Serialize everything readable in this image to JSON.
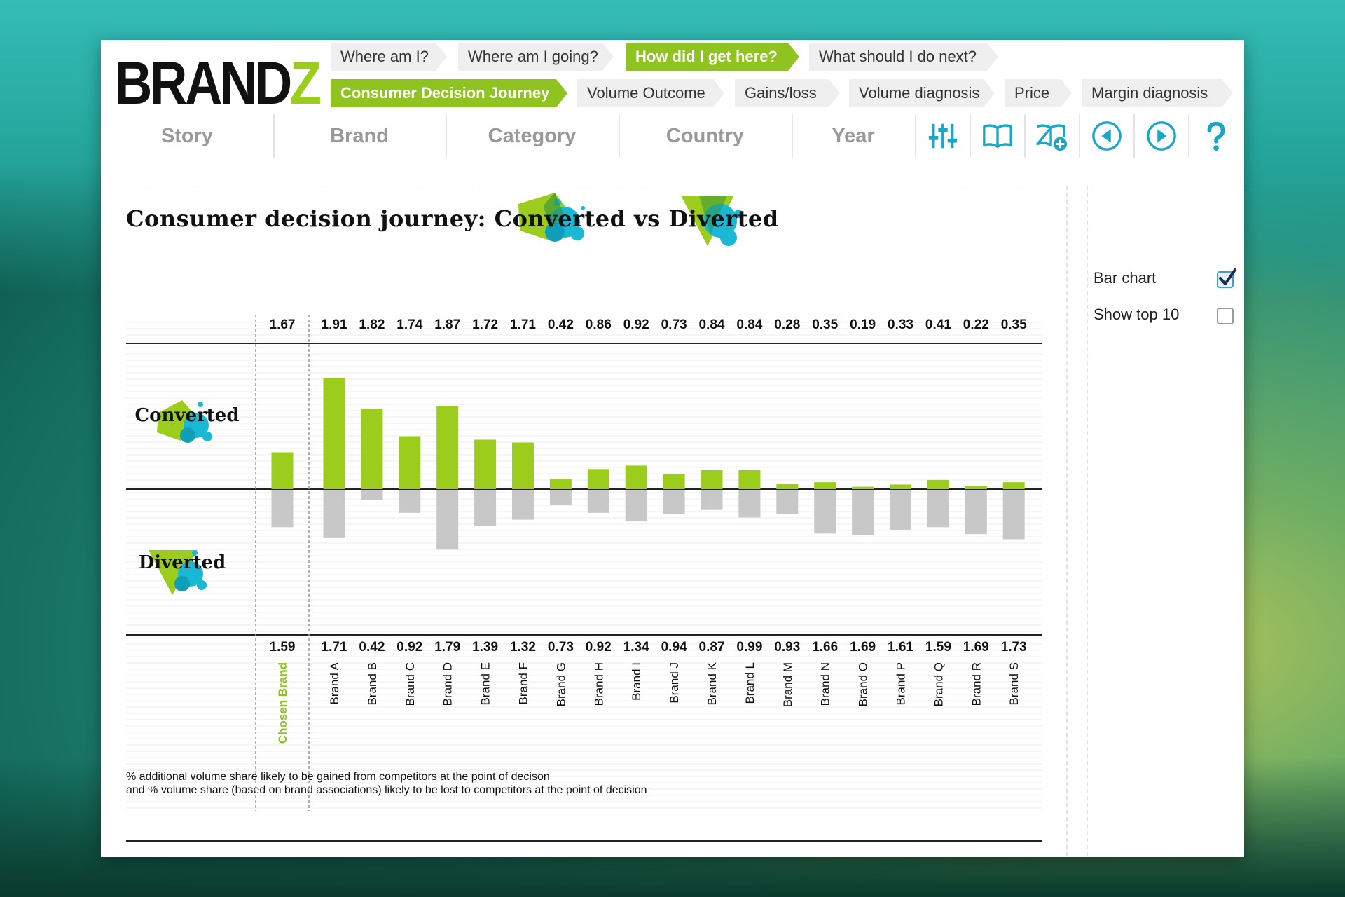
{
  "app": {
    "logo_main": "BRAND",
    "logo_accent": "Z"
  },
  "breadcrumbs_top": [
    {
      "label": "Where am I?",
      "active": false
    },
    {
      "label": "Where am I going?",
      "active": false
    },
    {
      "label": "How did I get here?",
      "active": true
    },
    {
      "label": "What should I do next?",
      "active": false
    }
  ],
  "breadcrumbs_sub": [
    {
      "label": "Consumer Decision Journey",
      "active": true
    },
    {
      "label": "Volume Outcome",
      "active": false
    },
    {
      "label": "Gains/loss",
      "active": false
    },
    {
      "label": "Volume diagnosis",
      "active": false
    },
    {
      "label": "Price",
      "active": false
    },
    {
      "label": "Margin diagnosis",
      "active": false
    }
  ],
  "nav_tabs": [
    "Story",
    "Brand",
    "Category",
    "Country",
    "Year"
  ],
  "nav_icons": [
    "sliders-icon",
    "book-icon",
    "book-add-icon",
    "previous-icon",
    "next-icon",
    "help-icon"
  ],
  "colors": {
    "accent": "#8fc31f",
    "converted_bar": "#9ccc1c",
    "diverted_bar": "#c8c8c8",
    "icon_blue": "#1aa6c9",
    "chosen_label": "#8fc31f"
  },
  "chart": {
    "title_prefix": "Consumer decision journey:",
    "title_converted": "Converted",
    "title_vs": "vs",
    "title_diverted": "Diverted",
    "row_label_converted": "Converted",
    "row_label_diverted": "Diverted",
    "footnote_line1": "% additional volume share likely to be gained from competitors at the point of decison",
    "footnote_line2": "and % volume share (based on brand associations) likely to be lost to competitors at the point of decision"
  },
  "chart_data": {
    "type": "bar",
    "categories": [
      "Chosen Brand",
      "Brand A",
      "Brand B",
      "Brand C",
      "Brand D",
      "Brand E",
      "Brand F",
      "Brand G",
      "Brand H",
      "Brand I",
      "Brand J",
      "Brand K",
      "Brand L",
      "Brand M",
      "Brand N",
      "Brand O",
      "Brand P",
      "Brand Q",
      "Brand R",
      "Brand S"
    ],
    "series": [
      {
        "name": "Converted",
        "values": [
          1.67,
          1.91,
          1.82,
          1.74,
          1.87,
          1.72,
          1.71,
          0.42,
          0.86,
          0.92,
          0.73,
          0.84,
          0.84,
          0.28,
          0.35,
          0.19,
          0.33,
          0.41,
          0.22,
          0.35
        ],
        "shown_values": [
          0.64,
          1.94,
          1.39,
          0.92,
          1.45,
          0.86,
          0.81,
          0.17,
          0.35,
          0.41,
          0.26,
          0.33,
          0.33,
          0.09,
          0.12,
          0.04,
          0.08,
          0.16,
          0.05,
          0.12
        ]
      },
      {
        "name": "Diverted",
        "values": [
          1.59,
          1.71,
          0.42,
          0.92,
          1.79,
          1.39,
          1.32,
          0.73,
          0.92,
          1.34,
          0.94,
          0.87,
          0.99,
          0.93,
          1.66,
          1.69,
          1.61,
          1.59,
          1.69,
          1.73
        ],
        "shown_values": [
          0.65,
          0.84,
          0.18,
          0.4,
          1.04,
          0.63,
          0.52,
          0.26,
          0.4,
          0.55,
          0.42,
          0.35,
          0.48,
          0.42,
          0.76,
          0.79,
          0.7,
          0.65,
          0.77,
          0.86
        ]
      }
    ],
    "ylim": [
      -2,
      2
    ],
    "grid": true,
    "highlighted_category": "Chosen Brand"
  },
  "side_panel": {
    "options": [
      {
        "label": "Bar chart",
        "checked": true
      },
      {
        "label": "Show top 10",
        "checked": false
      }
    ]
  }
}
